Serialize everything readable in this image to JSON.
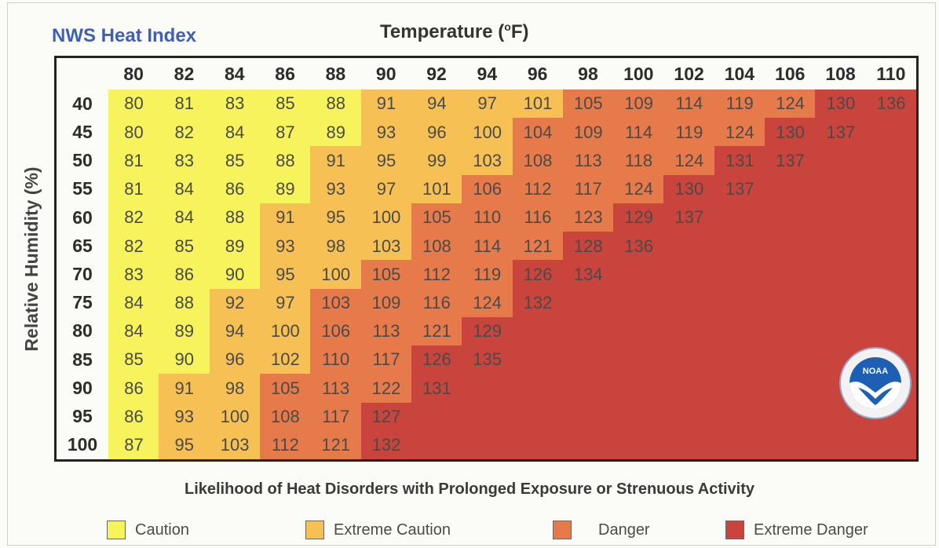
{
  "header": {
    "title": "NWS Heat Index",
    "temp_title": "Temperature (",
    "temp_degree": "o",
    "temp_unit": "F)",
    "y_title": "Relative Humidity (%)"
  },
  "footer": {
    "caption": "Likelihood of Heat Disorders with Prolonged Exposure or Strenuous Activity"
  },
  "legend": [
    {
      "label": "Caution",
      "color": "#f7f35c"
    },
    {
      "label": "Extreme Caution",
      "color": "#f7c054"
    },
    {
      "label": "Danger",
      "color": "#e77a4a"
    },
    {
      "label": "Extreme Danger",
      "color": "#c8443c"
    }
  ],
  "logo": {
    "icon": "noaa-logo-icon",
    "text": "NOAA"
  },
  "chart_data": {
    "type": "heatmap",
    "title": "NWS Heat Index",
    "xlabel": "Temperature (°F)",
    "ylabel": "Relative Humidity (%)",
    "x": [
      80,
      82,
      84,
      86,
      88,
      90,
      92,
      94,
      96,
      98,
      100,
      102,
      104,
      106,
      108,
      110
    ],
    "y": [
      40,
      45,
      50,
      55,
      60,
      65,
      70,
      75,
      80,
      85,
      90,
      95,
      100
    ],
    "categories": [
      "Caution",
      "Extreme Caution",
      "Danger",
      "Extreme Danger"
    ],
    "rows": [
      {
        "humidity": 40,
        "values": [
          80,
          81,
          83,
          85,
          88,
          91,
          94,
          97,
          101,
          105,
          109,
          114,
          119,
          124,
          130,
          136
        ],
        "levels": [
          0,
          0,
          0,
          0,
          0,
          1,
          1,
          1,
          1,
          2,
          2,
          2,
          2,
          2,
          3,
          3
        ]
      },
      {
        "humidity": 45,
        "values": [
          80,
          82,
          84,
          87,
          89,
          93,
          96,
          100,
          104,
          109,
          114,
          119,
          124,
          130,
          137
        ],
        "levels": [
          0,
          0,
          0,
          0,
          0,
          1,
          1,
          1,
          2,
          2,
          2,
          2,
          2,
          3,
          3,
          3
        ]
      },
      {
        "humidity": 50,
        "values": [
          81,
          83,
          85,
          88,
          91,
          95,
          99,
          103,
          108,
          113,
          118,
          124,
          131,
          137
        ],
        "levels": [
          0,
          0,
          0,
          0,
          1,
          1,
          1,
          1,
          2,
          2,
          2,
          2,
          3,
          3,
          3,
          3
        ]
      },
      {
        "humidity": 55,
        "values": [
          81,
          84,
          86,
          89,
          93,
          97,
          101,
          106,
          112,
          117,
          124,
          130,
          137
        ],
        "levels": [
          0,
          0,
          0,
          0,
          1,
          1,
          1,
          2,
          2,
          2,
          2,
          3,
          3,
          3,
          3,
          3
        ]
      },
      {
        "humidity": 60,
        "values": [
          82,
          84,
          88,
          91,
          95,
          100,
          105,
          110,
          116,
          123,
          129,
          137
        ],
        "levels": [
          0,
          0,
          0,
          1,
          1,
          1,
          2,
          2,
          2,
          2,
          3,
          3,
          3,
          3,
          3,
          3
        ]
      },
      {
        "humidity": 65,
        "values": [
          82,
          85,
          89,
          93,
          98,
          103,
          108,
          114,
          121,
          128,
          136
        ],
        "levels": [
          0,
          0,
          0,
          1,
          1,
          1,
          2,
          2,
          2,
          3,
          3,
          3,
          3,
          3,
          3,
          3
        ]
      },
      {
        "humidity": 70,
        "values": [
          83,
          86,
          90,
          95,
          100,
          105,
          112,
          119,
          126,
          134
        ],
        "levels": [
          0,
          0,
          0,
          1,
          1,
          2,
          2,
          2,
          3,
          3,
          3,
          3,
          3,
          3,
          3,
          3
        ]
      },
      {
        "humidity": 75,
        "values": [
          84,
          88,
          92,
          97,
          103,
          109,
          116,
          124,
          132
        ],
        "levels": [
          0,
          0,
          1,
          1,
          2,
          2,
          2,
          2,
          3,
          3,
          3,
          3,
          3,
          3,
          3,
          3
        ]
      },
      {
        "humidity": 80,
        "values": [
          84,
          89,
          94,
          100,
          106,
          113,
          121,
          129
        ],
        "levels": [
          0,
          0,
          1,
          1,
          2,
          2,
          2,
          3,
          3,
          3,
          3,
          3,
          3,
          3,
          3,
          3
        ]
      },
      {
        "humidity": 85,
        "values": [
          85,
          90,
          96,
          102,
          110,
          117,
          126,
          135
        ],
        "levels": [
          0,
          0,
          1,
          1,
          2,
          2,
          3,
          3,
          3,
          3,
          3,
          3,
          3,
          3,
          3,
          3
        ]
      },
      {
        "humidity": 90,
        "values": [
          86,
          91,
          98,
          105,
          113,
          122,
          131
        ],
        "levels": [
          0,
          1,
          1,
          2,
          2,
          2,
          3,
          3,
          3,
          3,
          3,
          3,
          3,
          3,
          3,
          3
        ]
      },
      {
        "humidity": 95,
        "values": [
          86,
          93,
          100,
          108,
          117,
          127
        ],
        "levels": [
          0,
          1,
          1,
          2,
          2,
          3,
          3,
          3,
          3,
          3,
          3,
          3,
          3,
          3,
          3,
          3
        ]
      },
      {
        "humidity": 100,
        "values": [
          87,
          95,
          103,
          112,
          121,
          132
        ],
        "levels": [
          0,
          1,
          1,
          2,
          2,
          3,
          3,
          3,
          3,
          3,
          3,
          3,
          3,
          3,
          3,
          3
        ]
      }
    ]
  }
}
